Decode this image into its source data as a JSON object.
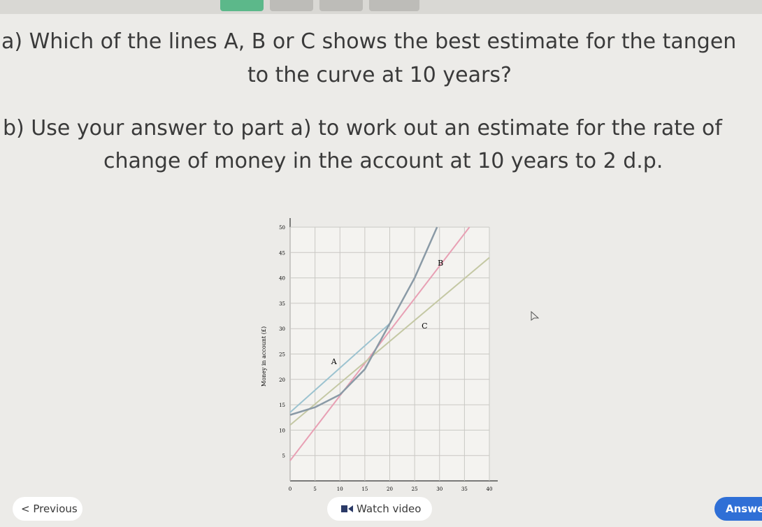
{
  "question": {
    "part_a": [
      "a) Which of the lines A, B or C shows the best estimate for the tangen",
      "to the curve at 10 years?"
    ],
    "part_b": [
      "b) Use your answer to part a) to work out an estimate for the rate of",
      "change of money in the account at 10 years to 2 d.p."
    ]
  },
  "chart_data": {
    "type": "line",
    "y_label": "Money in account (£)",
    "xlim": [
      0,
      40
    ],
    "ylim": [
      0,
      50
    ],
    "xticks": [
      0,
      5,
      10,
      15,
      20,
      25,
      30,
      35,
      40
    ],
    "yticks": [
      5,
      10,
      15,
      20,
      25,
      30,
      35,
      40,
      45,
      50
    ],
    "grid": true,
    "curve": {
      "color": "#8a9aa6",
      "x": [
        0,
        5,
        10,
        15,
        20,
        25,
        29.5
      ],
      "values": [
        13,
        14.5,
        17,
        22,
        31,
        40,
        50
      ]
    },
    "series": [
      {
        "name": "A",
        "color": "#9cc3d0",
        "x": [
          0,
          20
        ],
        "values": [
          13.5,
          31
        ]
      },
      {
        "name": "B",
        "color": "#e8a0b4",
        "x": [
          0,
          36
        ],
        "values": [
          4,
          50
        ]
      },
      {
        "name": "C",
        "color": "#c4c8a4",
        "x": [
          0,
          40
        ],
        "values": [
          11,
          44
        ]
      }
    ]
  },
  "buttons": {
    "previous": "< Previous",
    "watch": "Watch video",
    "answer": "Answe"
  }
}
